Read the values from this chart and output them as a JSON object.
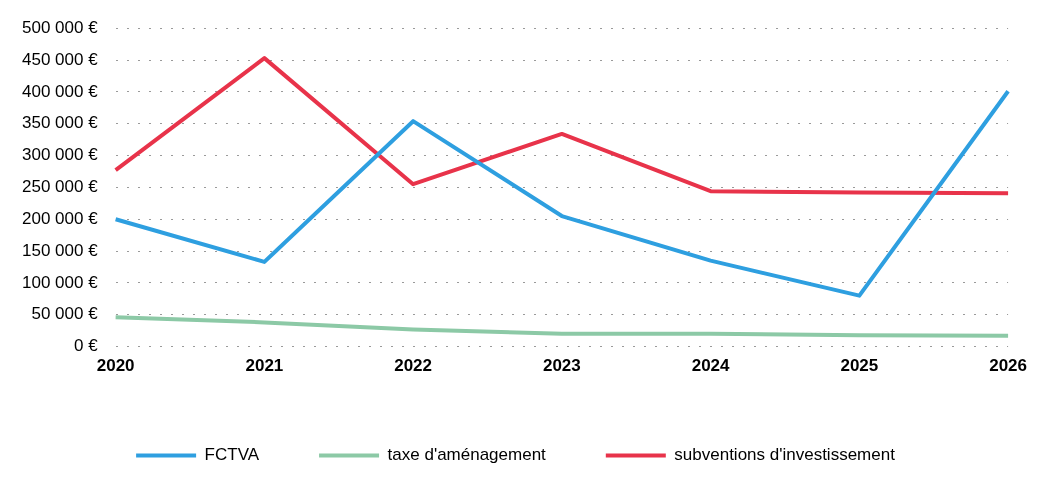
{
  "chart_data": {
    "type": "line",
    "categories": [
      "2020",
      "2021",
      "2022",
      "2023",
      "2024",
      "2025",
      "2026"
    ],
    "series": [
      {
        "name": "FCTVA",
        "color": "#2e9fe0",
        "values": [
          200000,
          133000,
          354000,
          205000,
          135000,
          80000,
          401000
        ]
      },
      {
        "name": "taxe d'aménagement",
        "color": "#8cc9a6",
        "values": [
          46000,
          38000,
          27000,
          20000,
          20000,
          18000,
          17000
        ]
      },
      {
        "name": "subventions d'investissement",
        "color": "#e8334a",
        "values": [
          277000,
          453000,
          255000,
          334000,
          244000,
          242000,
          241000
        ]
      }
    ],
    "ylim": [
      0,
      500000
    ],
    "yticks": [
      {
        "value": 0,
        "label": "0 €"
      },
      {
        "value": 50000,
        "label": "50 000 €"
      },
      {
        "value": 100000,
        "label": "100 000 €"
      },
      {
        "value": 150000,
        "label": "150 000 €"
      },
      {
        "value": 200000,
        "label": "200 000 €"
      },
      {
        "value": 250000,
        "label": "250 000 €"
      },
      {
        "value": 300000,
        "label": "300 000 €"
      },
      {
        "value": 350000,
        "label": "350 000 €"
      },
      {
        "value": 400000,
        "label": "400 000 €"
      },
      {
        "value": 450000,
        "label": "450 000 €"
      },
      {
        "value": 500000,
        "label": "500 000 €"
      }
    ],
    "grid": "y",
    "legend": "bottom",
    "marker": "none",
    "line_style": "solid"
  }
}
